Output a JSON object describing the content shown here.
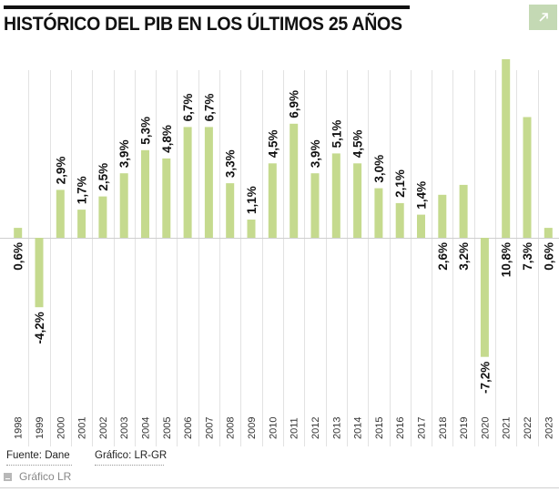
{
  "header": {
    "title": "HISTÓRICO DEL PIB EN LOS ÚLTIMOS 25 AÑOS",
    "expand_icon": "arrow-up-right-icon"
  },
  "colors": {
    "bar": "#c5da8e",
    "grid": "#e2e2e2",
    "baseline": "#cfcfcf",
    "expand_button_bg": "#c4d9b4",
    "title": "#111111"
  },
  "chart_data": {
    "type": "bar",
    "title": "HISTÓRICO DEL PIB EN LOS ÚLTIMOS 25 AÑOS",
    "xlabel": "",
    "ylabel": "",
    "ylim": [
      -10.7,
      10.8
    ],
    "grid": "vertical",
    "legend": "none",
    "categories": [
      "1998",
      "1999",
      "2000",
      "2001",
      "2002",
      "2003",
      "2004",
      "2005",
      "2006",
      "2007",
      "2008",
      "2009",
      "2010",
      "2011",
      "2012",
      "2013",
      "2014",
      "2015",
      "2016",
      "2017",
      "2018",
      "2019",
      "2020",
      "2021",
      "2022",
      "2023"
    ],
    "values": [
      0.6,
      -4.2,
      2.9,
      1.7,
      2.5,
      3.9,
      5.3,
      4.8,
      6.7,
      6.7,
      3.3,
      1.1,
      4.5,
      6.9,
      3.9,
      5.1,
      4.5,
      3.0,
      2.1,
      1.4,
      2.6,
      3.2,
      -7.2,
      10.8,
      7.3,
      0.6
    ],
    "labels": [
      "0,6%",
      "-4,2%",
      "2,9%",
      "1,7%",
      "2,5%",
      "3,9%",
      "5,3%",
      "4,8%",
      "6,7%",
      "6,7%",
      "3,3%",
      "1,1%",
      "4,5%",
      "6,9%",
      "3,9%",
      "5,1%",
      "4,5%",
      "3,0%",
      "2,1%",
      "1,4%",
      "2,6%",
      "3,2%",
      "-7,2%",
      "10,8%",
      "7,3%",
      "0,6%"
    ],
    "label_placement": [
      "below",
      "below",
      "above",
      "above",
      "above",
      "above",
      "above",
      "above",
      "above",
      "above",
      "above",
      "above",
      "above",
      "above",
      "above",
      "above",
      "above",
      "above",
      "above",
      "above",
      "below",
      "below",
      "below",
      "below",
      "below",
      "below"
    ]
  },
  "footer": {
    "source": "Fuente: Dane",
    "graphic": "Gráfico: LR-GR",
    "credit": "Gráfico LR",
    "credit_icon": "image-icon"
  }
}
